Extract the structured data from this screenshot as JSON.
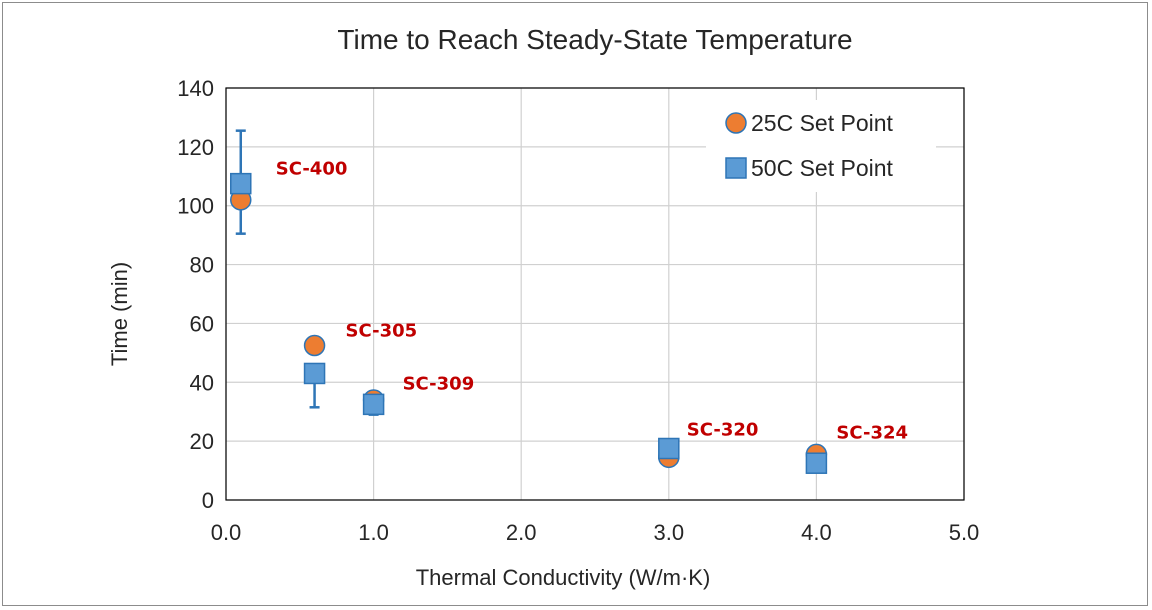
{
  "chart_data": {
    "type": "scatter",
    "title": "Time to Reach Steady-State Temperature",
    "xlabel": "Thermal Conductivity (W/m·K)",
    "ylabel": "Time (min)",
    "xlim": [
      0,
      5
    ],
    "ylim": [
      0,
      140
    ],
    "x_ticks": [
      "0.0",
      "1.0",
      "2.0",
      "3.0",
      "4.0",
      "5.0"
    ],
    "y_ticks": [
      "0",
      "20",
      "40",
      "60",
      "80",
      "100",
      "120",
      "140"
    ],
    "x_tick_values": [
      0,
      1,
      2,
      3,
      4,
      5
    ],
    "y_tick_values": [
      0,
      20,
      40,
      60,
      80,
      100,
      120,
      140
    ],
    "grid": true,
    "legend_position": "top-right",
    "series": [
      {
        "name": "25C Set Point",
        "marker": "circle",
        "color": "#ED7D31",
        "edge_color": "#2E75B6",
        "points": [
          {
            "x": 0.1,
            "y": 102
          },
          {
            "x": 0.6,
            "y": 52.5
          },
          {
            "x": 1.0,
            "y": 34
          },
          {
            "x": 3.0,
            "y": 14.5
          },
          {
            "x": 4.0,
            "y": 15.5
          }
        ]
      },
      {
        "name": "50C Set Point",
        "marker": "square",
        "color": "#5B9BD5",
        "edge_color": "#2E75B6",
        "points": [
          {
            "x": 0.1,
            "y": 107.5,
            "err_low": 17,
            "err_high": 18
          },
          {
            "x": 0.6,
            "y": 43,
            "err_low": 11.5,
            "err_high": 0
          },
          {
            "x": 1.0,
            "y": 32.5,
            "err_low": 3.5,
            "err_high": 0
          },
          {
            "x": 3.0,
            "y": 17.5
          },
          {
            "x": 4.0,
            "y": 12.5
          }
        ]
      }
    ],
    "annotations": [
      {
        "text": "SC-400",
        "x": 0.1,
        "y": 107.5
      },
      {
        "text": "SC-305",
        "x": 0.6,
        "y": 52.5
      },
      {
        "text": "SC-309",
        "x": 1.0,
        "y": 32.5
      },
      {
        "text": "SC-320",
        "x": 3.0,
        "y": 17.5
      },
      {
        "text": "SC-324",
        "x": 4.0,
        "y": 15.5
      }
    ],
    "annotation_color": "#C00000",
    "errorbar_color": "#2E75B6"
  }
}
